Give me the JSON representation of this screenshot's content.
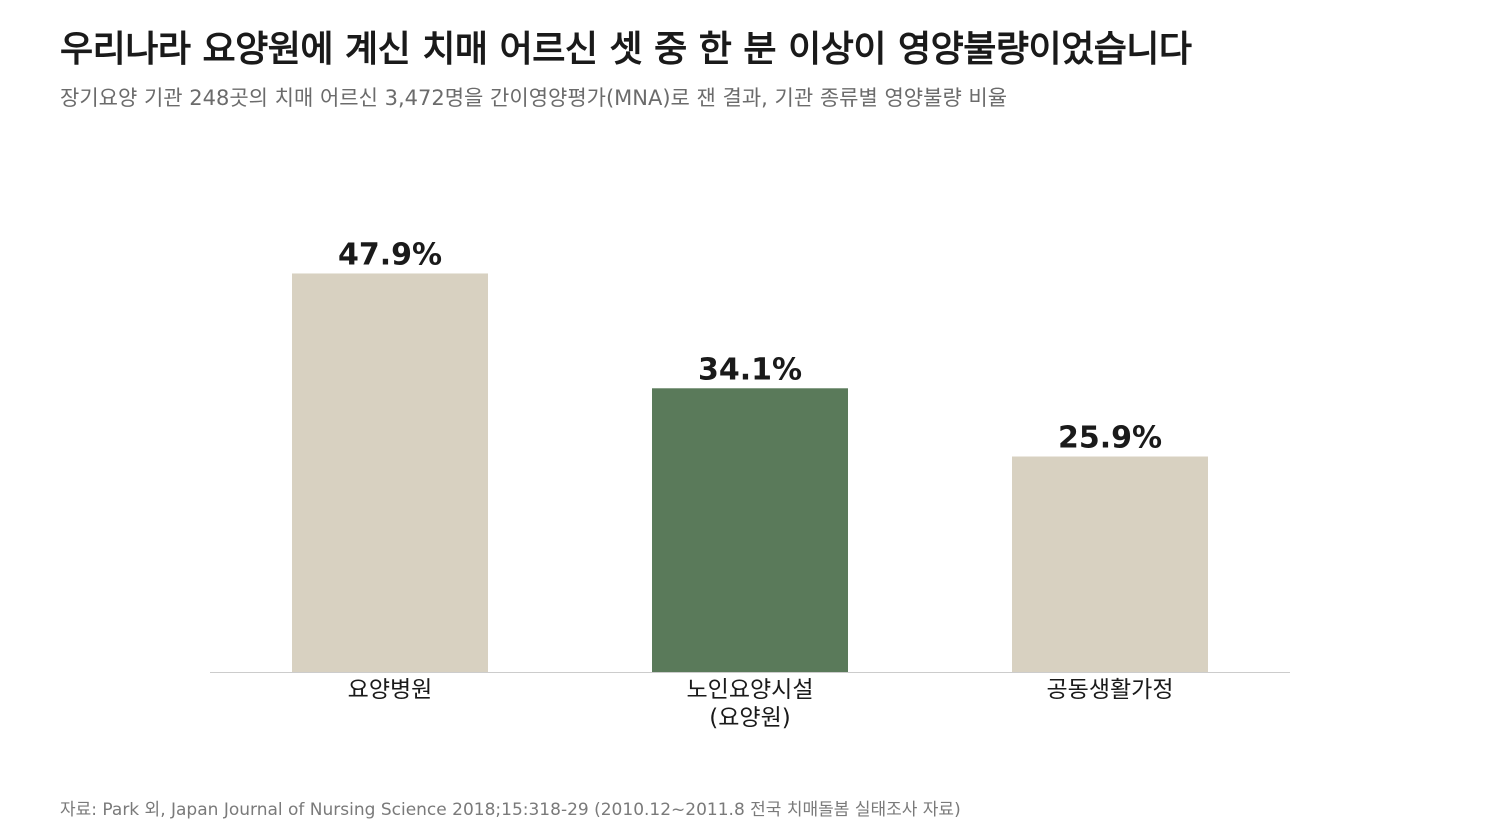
{
  "header": {
    "title": "우리나라 요양원에 계신 치매 어르신 셋 중 한 분 이상이 영양불량이었습니다",
    "subtitle": "장기요양 기관 248곳의 치매 어르신 3,472명을 간이영양평가(MNA)로 잰 결과, 기관 종류별 영양불량 비율"
  },
  "chart_data": {
    "type": "bar",
    "categories": [
      "요양병원",
      "노인요양시설\n(요양원)",
      "공동생활가정"
    ],
    "values": [
      47.9,
      34.1,
      25.9
    ],
    "value_labels": [
      "47.9%",
      "34.1%",
      "25.9%"
    ],
    "ylim": [
      0,
      50
    ],
    "grid": false,
    "legend": "none",
    "colors": {
      "default": "#d8d1c1",
      "highlight": "#5a7a5a",
      "baseline": "#cccccc",
      "label": "#1a1a1a"
    },
    "highlight_index": 1
  },
  "footnote": "자료: Park 외, Japan Journal of Nursing Science 2018;15:318-29 (2010.12~2011.8 전국 치매돌봄 실태조사 자료)"
}
